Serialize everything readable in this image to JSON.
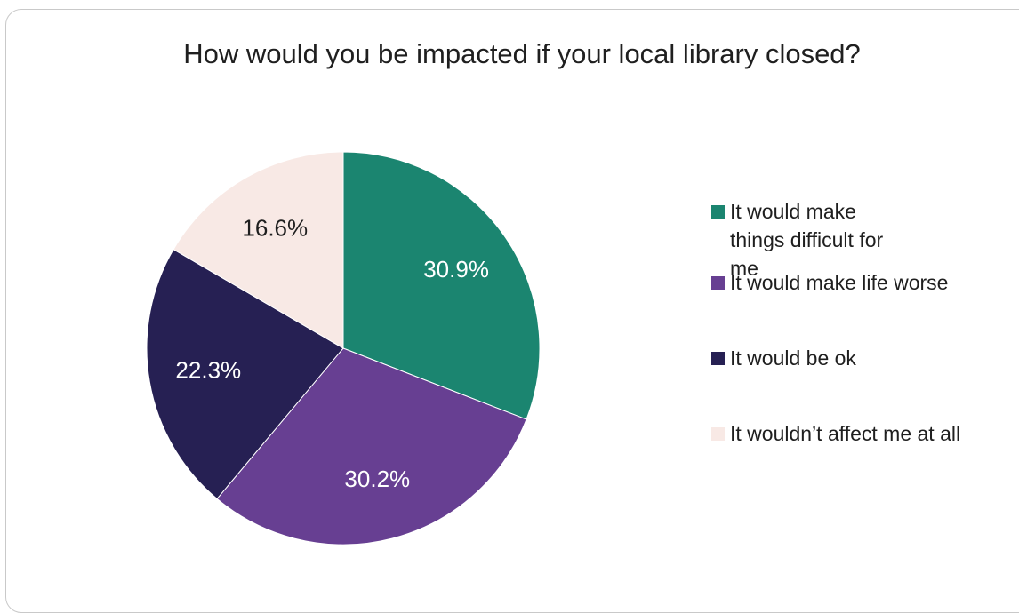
{
  "chart_data": {
    "type": "pie",
    "title": "How would you be impacted if your local library closed?",
    "slices": [
      {
        "label": "It would make things difficult for me",
        "value": 30.9,
        "display": "30.9%",
        "color": "#1b8570",
        "text_color": "#ffffff"
      },
      {
        "label": "It would make life worse",
        "value": 30.2,
        "display": "30.2%",
        "color": "#673f92",
        "text_color": "#ffffff"
      },
      {
        "label": "It would be ok",
        "value": 22.3,
        "display": "22.3%",
        "color": "#262053",
        "text_color": "#ffffff"
      },
      {
        "label": "It wouldn’t affect me at all",
        "value": 16.6,
        "display": "16.6%",
        "color": "#f8e9e5",
        "text_color": "#1f1f1f"
      }
    ],
    "legend_position": "right",
    "start_angle": "12 o'clock",
    "direction": "clockwise"
  }
}
